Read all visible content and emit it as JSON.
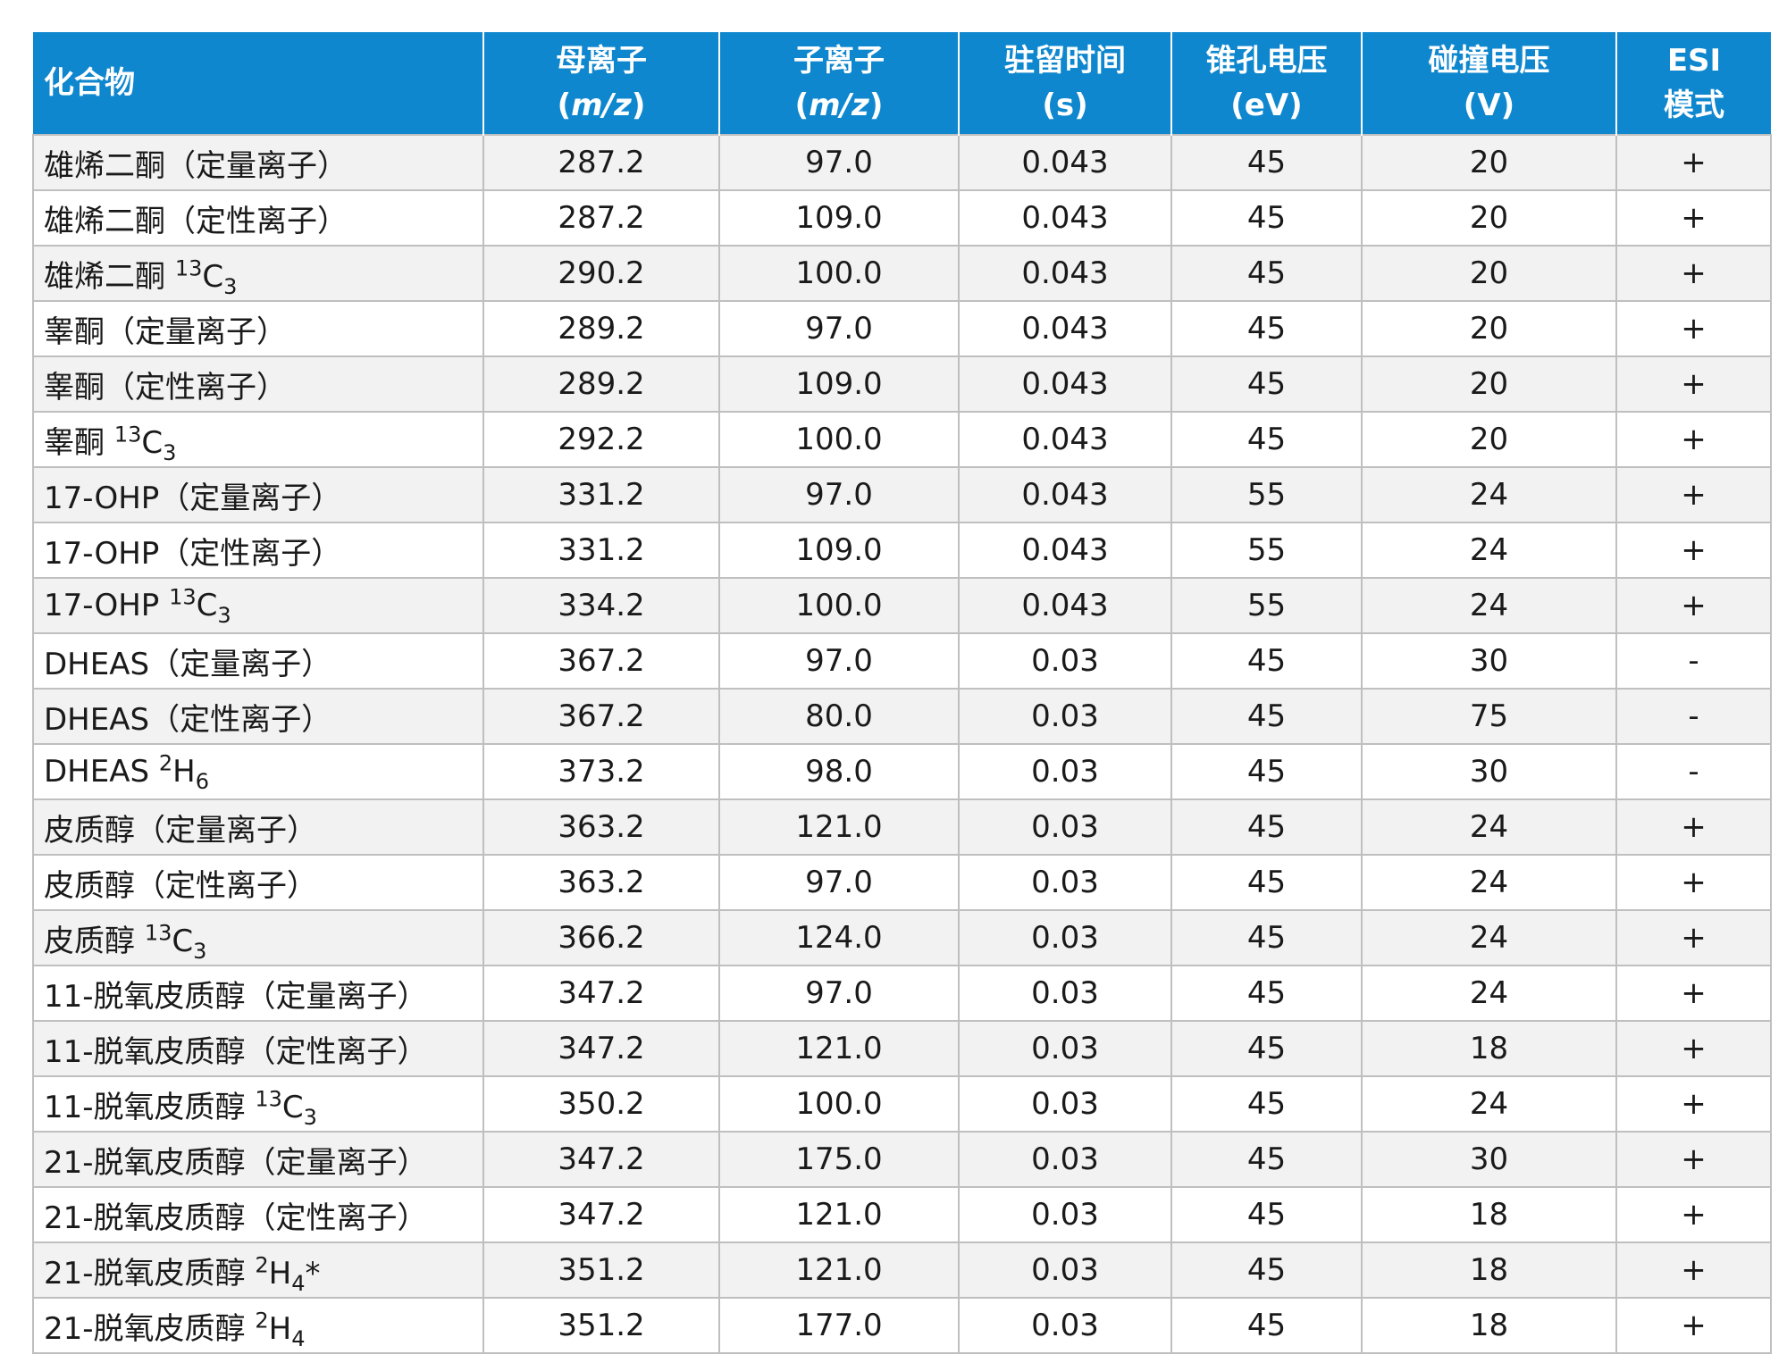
{
  "table": {
    "headers": [
      {
        "line1": "化合物",
        "line2": ""
      },
      {
        "line1": "母离子",
        "line2_open": "(",
        "line2_it": "m/z",
        "line2_close": ")"
      },
      {
        "line1": "子离子",
        "line2_open": "(",
        "line2_it": "m/z",
        "line2_close": ")"
      },
      {
        "line1": "驻留时间",
        "line2": "(s)"
      },
      {
        "line1": "锥孔电压",
        "line2": "(eV)"
      },
      {
        "line1": "碰撞电压",
        "line2": "(V)"
      },
      {
        "line1": "ESI",
        "line2": "模式"
      }
    ],
    "rows": [
      {
        "name": "雄烯二酮（定量离子）",
        "sup": "",
        "base": "",
        "sub": "",
        "tail": "",
        "parent": "287.2",
        "daughter": "97.0",
        "dwell": "0.043",
        "cone": "45",
        "collision": "20",
        "esi": "+"
      },
      {
        "name": "雄烯二酮（定性离子）",
        "sup": "",
        "base": "",
        "sub": "",
        "tail": "",
        "parent": "287.2",
        "daughter": "109.0",
        "dwell": "0.043",
        "cone": "45",
        "collision": "20",
        "esi": "+"
      },
      {
        "name": "雄烯二酮 ",
        "sup": "13",
        "base": "C",
        "sub": "3",
        "tail": "",
        "parent": "290.2",
        "daughter": "100.0",
        "dwell": "0.043",
        "cone": "45",
        "collision": "20",
        "esi": "+"
      },
      {
        "name": "睾酮（定量离子）",
        "sup": "",
        "base": "",
        "sub": "",
        "tail": "",
        "parent": "289.2",
        "daughter": "97.0",
        "dwell": "0.043",
        "cone": "45",
        "collision": "20",
        "esi": "+"
      },
      {
        "name": "睾酮（定性离子）",
        "sup": "",
        "base": "",
        "sub": "",
        "tail": "",
        "parent": "289.2",
        "daughter": "109.0",
        "dwell": "0.043",
        "cone": "45",
        "collision": "20",
        "esi": "+"
      },
      {
        "name": "睾酮 ",
        "sup": "13",
        "base": "C",
        "sub": "3",
        "tail": "",
        "parent": "292.2",
        "daughter": "100.0",
        "dwell": "0.043",
        "cone": "45",
        "collision": "20",
        "esi": "+"
      },
      {
        "name": "17-OHP（定量离子）",
        "sup": "",
        "base": "",
        "sub": "",
        "tail": "",
        "parent": "331.2",
        "daughter": "97.0",
        "dwell": "0.043",
        "cone": "55",
        "collision": "24",
        "esi": "+"
      },
      {
        "name": "17-OHP（定性离子）",
        "sup": "",
        "base": "",
        "sub": "",
        "tail": "",
        "parent": "331.2",
        "daughter": "109.0",
        "dwell": "0.043",
        "cone": "55",
        "collision": "24",
        "esi": "+"
      },
      {
        "name": "17-OHP ",
        "sup": "13",
        "base": "C",
        "sub": "3",
        "tail": "",
        "parent": "334.2",
        "daughter": "100.0",
        "dwell": "0.043",
        "cone": "55",
        "collision": "24",
        "esi": "+"
      },
      {
        "name": "DHEAS（定量离子）",
        "sup": "",
        "base": "",
        "sub": "",
        "tail": "",
        "parent": "367.2",
        "daughter": "97.0",
        "dwell": "0.03",
        "cone": "45",
        "collision": "30",
        "esi": "-"
      },
      {
        "name": "DHEAS（定性离子）",
        "sup": "",
        "base": "",
        "sub": "",
        "tail": "",
        "parent": "367.2",
        "daughter": "80.0",
        "dwell": "0.03",
        "cone": "45",
        "collision": "75",
        "esi": "-"
      },
      {
        "name": "DHEAS ",
        "sup": "2",
        "base": "H",
        "sub": "6",
        "tail": "",
        "parent": "373.2",
        "daughter": "98.0",
        "dwell": "0.03",
        "cone": "45",
        "collision": "30",
        "esi": "-"
      },
      {
        "name": "皮质醇（定量离子）",
        "sup": "",
        "base": "",
        "sub": "",
        "tail": "",
        "parent": "363.2",
        "daughter": "121.0",
        "dwell": "0.03",
        "cone": "45",
        "collision": "24",
        "esi": "+"
      },
      {
        "name": "皮质醇（定性离子）",
        "sup": "",
        "base": "",
        "sub": "",
        "tail": "",
        "parent": "363.2",
        "daughter": "97.0",
        "dwell": "0.03",
        "cone": "45",
        "collision": "24",
        "esi": "+"
      },
      {
        "name": "皮质醇 ",
        "sup": "13",
        "base": "C",
        "sub": "3",
        "tail": "",
        "parent": "366.2",
        "daughter": "124.0",
        "dwell": "0.03",
        "cone": "45",
        "collision": "24",
        "esi": "+"
      },
      {
        "name": "11-脱氧皮质醇（定量离子）",
        "sup": "",
        "base": "",
        "sub": "",
        "tail": "",
        "parent": "347.2",
        "daughter": "97.0",
        "dwell": "0.03",
        "cone": "45",
        "collision": "24",
        "esi": "+"
      },
      {
        "name": "11-脱氧皮质醇（定性离子）",
        "sup": "",
        "base": "",
        "sub": "",
        "tail": "",
        "parent": "347.2",
        "daughter": "121.0",
        "dwell": "0.03",
        "cone": "45",
        "collision": "18",
        "esi": "+"
      },
      {
        "name": "11-脱氧皮质醇 ",
        "sup": "13",
        "base": "C",
        "sub": "3",
        "tail": "",
        "parent": "350.2",
        "daughter": "100.0",
        "dwell": "0.03",
        "cone": "45",
        "collision": "24",
        "esi": "+"
      },
      {
        "name": "21-脱氧皮质醇（定量离子）",
        "sup": "",
        "base": "",
        "sub": "",
        "tail": "",
        "parent": "347.2",
        "daughter": "175.0",
        "dwell": "0.03",
        "cone": "45",
        "collision": "30",
        "esi": "+"
      },
      {
        "name": "21-脱氧皮质醇（定性离子）",
        "sup": "",
        "base": "",
        "sub": "",
        "tail": "",
        "parent": "347.2",
        "daughter": "121.0",
        "dwell": "0.03",
        "cone": "45",
        "collision": "18",
        "esi": "+"
      },
      {
        "name": "21-脱氧皮质醇 ",
        "sup": "2",
        "base": "H",
        "sub": "4",
        "tail": "*",
        "parent": "351.2",
        "daughter": "121.0",
        "dwell": "0.03",
        "cone": "45",
        "collision": "18",
        "esi": "+"
      },
      {
        "name": "21-脱氧皮质醇 ",
        "sup": "2",
        "base": "H",
        "sub": "4",
        "tail": "",
        "parent": "351.2",
        "daughter": "177.0",
        "dwell": "0.03",
        "cone": "45",
        "collision": "18",
        "esi": "+"
      }
    ]
  }
}
